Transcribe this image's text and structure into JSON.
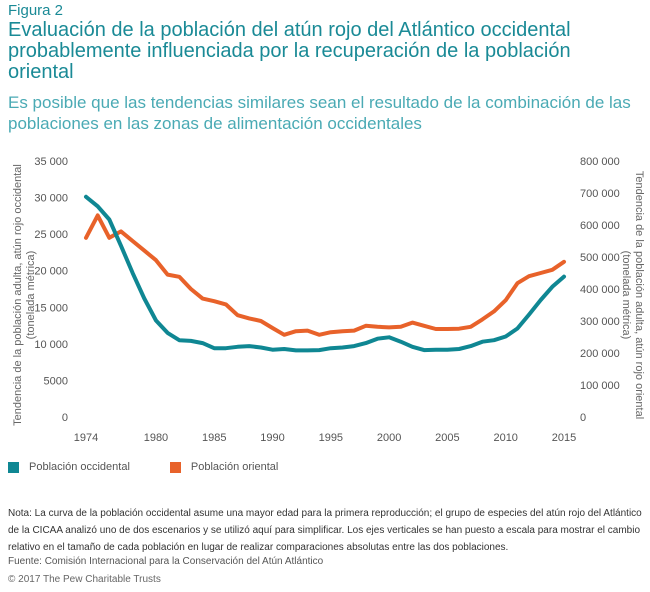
{
  "figure_label": "Figura 2",
  "title": "Evaluación de la población del atún rojo del Atlántico occidental probablemente influenciada por la recuperación de la población oriental",
  "subtitle": "Es posible que las tendencias similares sean el resultado de la combinación de las poblaciones en las zonas de alimentación occidentales",
  "chart_data": {
    "type": "line",
    "xlabel": "",
    "x_ticks": [
      "1974",
      "1980",
      "1985",
      "1990",
      "1995",
      "2000",
      "2005",
      "2010",
      "2015"
    ],
    "x_tick_values": [
      1974,
      1980,
      1985,
      1990,
      1995,
      2000,
      2005,
      2010,
      2015
    ],
    "xlim": [
      1974,
      2015
    ],
    "ylabel_left": "Tendencia de la población adulta, atún rojo occidental (tonelada métrica)",
    "ylabel_right": "Tendencia de la población adulta, atún rojo oriental (tonelada métrica)",
    "ylim_left": [
      0,
      35000
    ],
    "ylim_right": [
      0,
      800000
    ],
    "y_ticks_left": [
      "0",
      "5000",
      "10 000",
      "15 000",
      "20 000",
      "25 000",
      "30 000",
      "35 000"
    ],
    "y_tick_values_left": [
      0,
      5000,
      10000,
      15000,
      20000,
      25000,
      30000,
      35000
    ],
    "y_ticks_right": [
      "0",
      "100 000",
      "200 000",
      "300 000",
      "400 000",
      "500 000",
      "600 000",
      "700 000",
      "800 000"
    ],
    "y_tick_values_right": [
      0,
      100000,
      200000,
      300000,
      400000,
      500000,
      600000,
      700000,
      800000
    ],
    "series": [
      {
        "name": "Población occidental",
        "axis": "left",
        "color": "#0f8793",
        "x": [
          1974,
          1975,
          1976,
          1977,
          1978,
          1979,
          1980,
          1981,
          1982,
          1983,
          1984,
          1985,
          1986,
          1987,
          1988,
          1989,
          1990,
          1991,
          1992,
          1993,
          1994,
          1995,
          1996,
          1997,
          1998,
          1999,
          2000,
          2001,
          2002,
          2003,
          2004,
          2005,
          2006,
          2007,
          2008,
          2009,
          2010,
          2011,
          2012,
          2013,
          2014,
          2015
        ],
        "values": [
          30100,
          28800,
          27000,
          23400,
          19700,
          16200,
          13200,
          11500,
          10500,
          10400,
          10100,
          9400,
          9400,
          9600,
          9700,
          9500,
          9200,
          9300,
          9100,
          9100,
          9150,
          9400,
          9500,
          9700,
          10100,
          10700,
          10900,
          10300,
          9600,
          9150,
          9200,
          9200,
          9300,
          9700,
          10300,
          10500,
          11000,
          12100,
          14000,
          16000,
          17800,
          19200
        ]
      },
      {
        "name": "Población oriental",
        "axis": "right",
        "color": "#e8622a",
        "x": [
          1974,
          1975,
          1976,
          1977,
          1978,
          1979,
          1980,
          1981,
          1982,
          1983,
          1984,
          1985,
          1986,
          1987,
          1988,
          1989,
          1990,
          1991,
          1992,
          1993,
          1994,
          1995,
          1996,
          1997,
          1998,
          1999,
          2000,
          2001,
          2002,
          2003,
          2004,
          2005,
          2006,
          2007,
          2008,
          2009,
          2010,
          2011,
          2012,
          2013,
          2014,
          2015
        ],
        "values": [
          560000,
          630000,
          560000,
          580000,
          550000,
          520000,
          490000,
          445000,
          438000,
          400000,
          370000,
          362000,
          352000,
          318000,
          308000,
          300000,
          278000,
          257000,
          268000,
          270000,
          257000,
          265000,
          268000,
          270000,
          285000,
          282000,
          280000,
          282000,
          295000,
          285000,
          275000,
          275000,
          276000,
          282000,
          305000,
          330000,
          365000,
          418000,
          440000,
          450000,
          460000,
          485000
        ]
      }
    ],
    "legend_position": "bottom-left",
    "grid": false
  },
  "legend": [
    {
      "label": "Población occidental",
      "color": "#0f8793"
    },
    {
      "label": "Población oriental",
      "color": "#e8622a"
    }
  ],
  "note": "Nota: La curva de la población occidental asume una mayor edad para la primera reproducción; el grupo de especies del atún rojo del Atlántico de la CICAA analizó uno de dos escenarios y se utilizó aquí para simplificar. Los ejes verticales se han puesto a escala para mostrar el cambio relativo en el tamaño de cada población en lugar de realizar comparaciones absolutas entre las dos poblaciones.",
  "source": "Fuente: Comisión Internacional para la Conservación del Atún Atlántico",
  "copyright": "© 2017 The Pew Charitable Trusts"
}
